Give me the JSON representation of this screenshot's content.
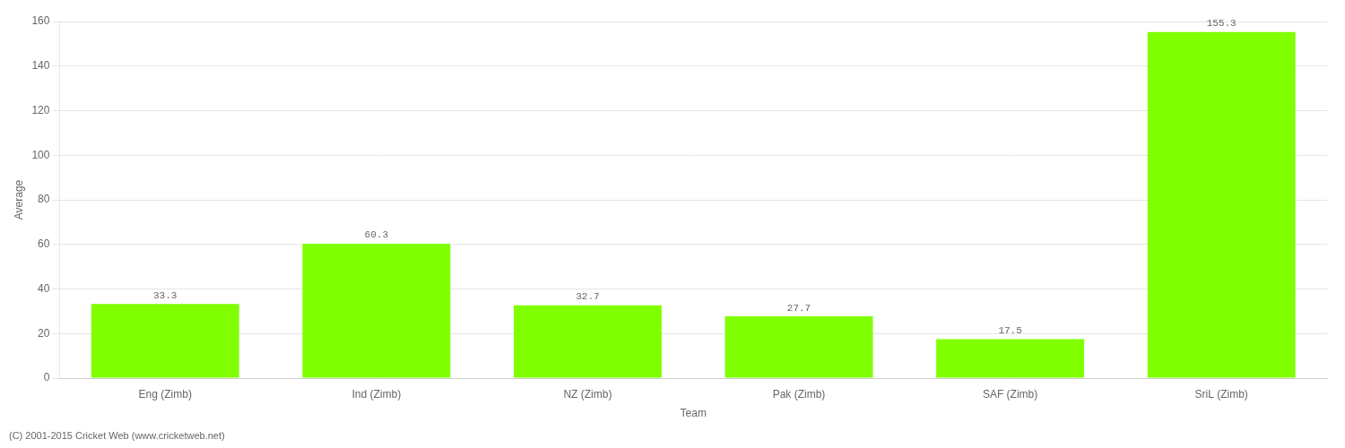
{
  "chart_data": {
    "type": "bar",
    "categories": [
      "Eng (Zimb)",
      "Ind (Zimb)",
      "NZ (Zimb)",
      "Pak (Zimb)",
      "SAF (Zimb)",
      "SriL (Zimb)"
    ],
    "values": [
      33.3,
      60.3,
      32.7,
      27.7,
      17.5,
      155.3
    ],
    "color": "#7fff00",
    "xlabel": "Team",
    "ylabel": "Average",
    "ylim": [
      0,
      160
    ],
    "yticks": [
      0,
      20,
      40,
      60,
      80,
      100,
      120,
      140,
      160
    ],
    "grid": true,
    "data_labels": true,
    "annotations": [
      "(C) 2001-2015 Cricket Web (www.cricketweb.net)"
    ]
  }
}
